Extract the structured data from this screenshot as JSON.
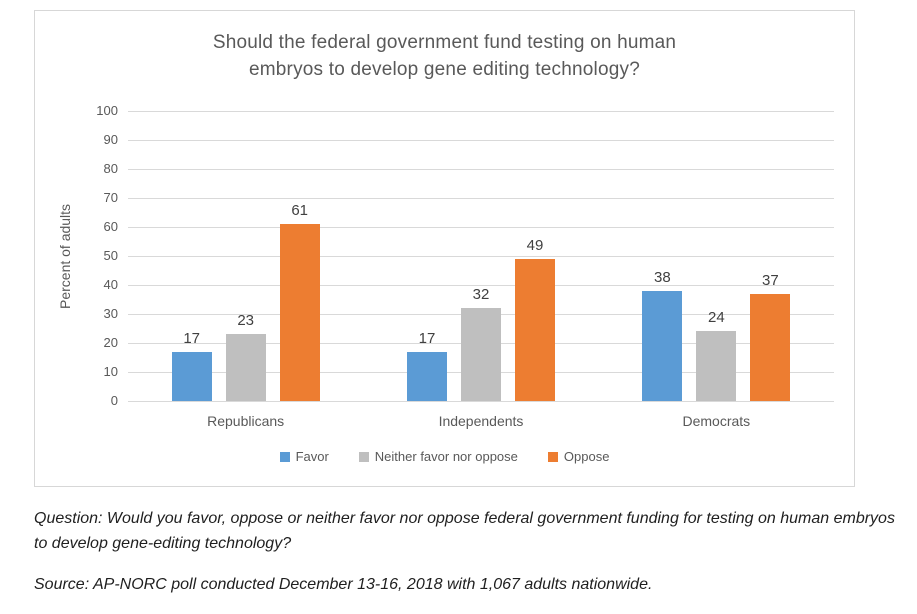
{
  "chart_data": {
    "type": "bar",
    "title": "Should the federal government fund testing on human embryos to develop gene editing technology?",
    "title_lines": [
      "Should the federal government fund testing on human",
      "embryos to develop gene editing technology?"
    ],
    "categories": [
      "Republicans",
      "Independents",
      "Democrats"
    ],
    "series": [
      {
        "name": "Favor",
        "color": "#5B9BD5",
        "values": [
          17,
          17,
          38
        ]
      },
      {
        "name": "Neither favor nor oppose",
        "color": "#BFBFBF",
        "values": [
          23,
          32,
          24
        ]
      },
      {
        "name": "Oppose",
        "color": "#ED7D31",
        "values": [
          61,
          49,
          37
        ]
      }
    ],
    "ylabel": "Percent of adults",
    "xlabel": "",
    "ylim": [
      0,
      100
    ],
    "ytick_step": 10,
    "grid": true,
    "legend_position": "bottom"
  },
  "footer": {
    "question": "Question: Would you favor, oppose or neither favor nor oppose federal government funding for testing on human embryos to develop gene-editing technology?",
    "source": "Source: AP-NORC poll conducted December 13-16, 2018 with 1,067 adults nationwide."
  },
  "colors": {
    "favor": "#5B9BD5",
    "neither": "#BFBFBF",
    "oppose": "#ED7D31",
    "text_gray": "#595959",
    "gridline": "#D9D9D9",
    "chart_border": "#D7D7D7",
    "value_label": "#404040"
  }
}
